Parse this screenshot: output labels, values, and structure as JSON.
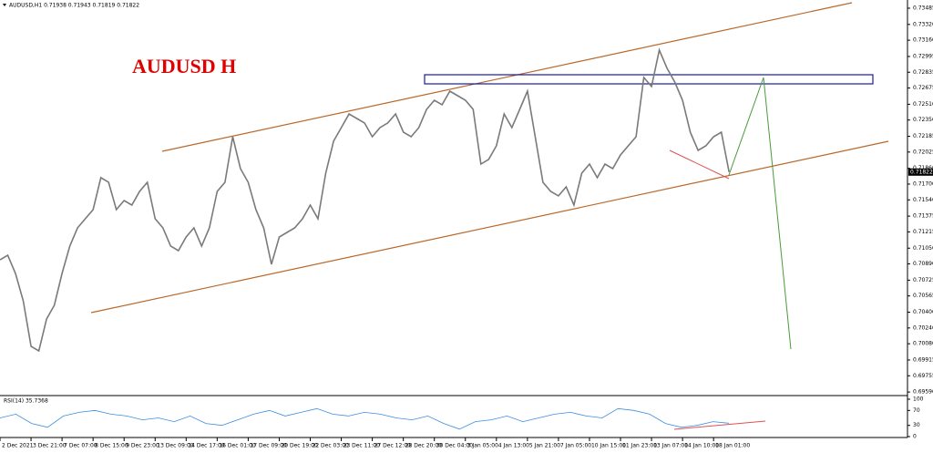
{
  "chart_data": [
    {
      "type": "line",
      "title": "AUDUSD,H1  0.71938 0.71943 0.71819 0.71822",
      "annotation": "AUDUSD H",
      "color": "#7a7a7a",
      "last_price": 0.71822,
      "values": [
        0.70932,
        0.70978,
        0.70793,
        0.70516,
        0.70053,
        0.70007,
        0.70331,
        0.7047,
        0.70793,
        0.71071,
        0.71256,
        0.71348,
        0.71441,
        0.71765,
        0.71718,
        0.71441,
        0.71533,
        0.71487,
        0.71626,
        0.71718,
        0.71348,
        0.71256,
        0.71071,
        0.71025,
        0.71163,
        0.71256,
        0.71071,
        0.71256,
        0.71626,
        0.71718,
        0.72181,
        0.71857,
        0.71718,
        0.71441,
        0.71256,
        0.70886,
        0.71163,
        0.7121,
        0.71256,
        0.71348,
        0.71487,
        0.71348,
        0.71811,
        0.72135,
        0.72273,
        0.72412,
        0.72366,
        0.7232,
        0.72181,
        0.72273,
        0.7232,
        0.72412,
        0.72227,
        0.72181,
        0.72273,
        0.72458,
        0.72551,
        0.72505,
        0.72643,
        0.72597,
        0.72551,
        0.72458,
        0.71903,
        0.7195,
        0.72088,
        0.72412,
        0.72273,
        0.72458,
        0.72643,
        0.72181,
        0.71718,
        0.71626,
        0.7158,
        0.71672,
        0.71487,
        0.71811,
        0.71903,
        0.71765,
        0.71903,
        0.71857,
        0.71996,
        0.72088,
        0.72181,
        0.72782,
        0.7269,
        0.7306,
        0.72875,
        0.72736,
        0.72551,
        0.72227,
        0.72042,
        0.72088,
        0.72181,
        0.72227,
        0.71822
      ],
      "xlim": [
        0,
        117
      ],
      "xticks": [
        {
          "value": 0,
          "label": "2 Dec 2021"
        },
        {
          "value": 4,
          "label": "3 Dec 21:00"
        },
        {
          "value": 8,
          "label": "7 Dec 07:00"
        },
        {
          "value": 12,
          "label": "8 Dec 15:00"
        },
        {
          "value": 16,
          "label": "9 Dec 23:00"
        },
        {
          "value": 20,
          "label": "13 Dec 09:00"
        },
        {
          "value": 24,
          "label": "14 Dec 17:00"
        },
        {
          "value": 28,
          "label": "16 Dec 01:00"
        },
        {
          "value": 32,
          "label": "17 Dec 09:00"
        },
        {
          "value": 36,
          "label": "20 Dec 19:00"
        },
        {
          "value": 40,
          "label": "22 Dec 03:00"
        },
        {
          "value": 44,
          "label": "23 Dec 11:00"
        },
        {
          "value": 48,
          "label": "27 Dec 12:00"
        },
        {
          "value": 52,
          "label": "28 Dec 20:00"
        },
        {
          "value": 56,
          "label": "30 Dec 04:00"
        },
        {
          "value": 60,
          "label": "3 Jan 05:00"
        },
        {
          "value": 64,
          "label": "4 Jan 13:00"
        },
        {
          "value": 68,
          "label": "5 Jan 21:00"
        },
        {
          "value": 72,
          "label": "7 Jan 05:00"
        },
        {
          "value": 76,
          "label": "10 Jan 15:00"
        },
        {
          "value": 80,
          "label": "11 Jan 23:00"
        },
        {
          "value": 84,
          "label": "13 Jan 07:00"
        },
        {
          "value": 88,
          "label": "14 Jan 10:00"
        },
        {
          "value": 92,
          "label": "18 Jan 01:00"
        }
      ],
      "ylim": [
        0.69554,
        0.73568
      ],
      "yticks": [
        0.73485,
        {
          "value": 0.7332,
          "label": "0.73320"
        },
        {
          "value": 0.7316,
          "label": "0.73160"
        },
        0.72995,
        0.72835,
        0.72675,
        {
          "value": 0.7251,
          "label": "0.72510"
        },
        {
          "value": 0.7235,
          "label": "0.72350"
        },
        0.72185,
        0.72025,
        {
          "value": 0.7186,
          "label": "0.71860"
        },
        {
          "value": 0.717,
          "label": "0.71700"
        },
        {
          "value": 0.7154,
          "label": "0.71540"
        },
        0.71375,
        0.71215,
        {
          "value": 0.7105,
          "label": "0.71050"
        },
        {
          "value": 0.7089,
          "label": "0.70890"
        },
        0.70725,
        0.70565,
        {
          "value": 0.704,
          "label": "0.70400"
        },
        {
          "value": 0.7024,
          "label": "0.70240"
        },
        {
          "value": 0.7008,
          "label": "0.70080"
        },
        0.69915,
        0.69755,
        {
          "value": 0.6959,
          "label": "0.69590"
        }
      ]
    },
    {
      "type": "rsi",
      "title": "RSI(14) 35.7368",
      "color": "#3b8ee0",
      "values": [
        50,
        60,
        35,
        25,
        55,
        65,
        70,
        60,
        55,
        45,
        50,
        40,
        55,
        35,
        30,
        45,
        60,
        70,
        55,
        65,
        75,
        60,
        55,
        65,
        60,
        50,
        45,
        55,
        35,
        20,
        40,
        45,
        55,
        40,
        50,
        60,
        65,
        55,
        50,
        75,
        70,
        60,
        35,
        25,
        30,
        40,
        35.7368
      ],
      "ylim": [
        0,
        100
      ],
      "yticks": [
        100,
        70,
        30,
        0
      ]
    }
  ]
}
